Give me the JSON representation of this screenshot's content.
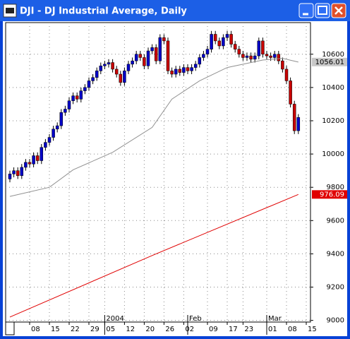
{
  "window": {
    "title": "DJI - DJ Industrial Average, Daily"
  },
  "chart_data": {
    "type": "candlestick",
    "open": [
      9850,
      9880,
      9900,
      9870,
      9920,
      9950,
      9940,
      9990,
      9960,
      10040,
      10070,
      10100,
      10150,
      10170,
      10250,
      10270,
      10320,
      10350,
      10330,
      10380,
      10400,
      10440,
      10460,
      10500,
      10530,
      10540,
      10550,
      10510,
      10480,
      10430,
      10500,
      10540,
      10560,
      10600,
      10580,
      10530,
      10620,
      10640,
      10560,
      10700,
      10680,
      10500,
      10480,
      10510,
      10490,
      10520,
      10500,
      10520,
      10540,
      10580,
      10600,
      10630,
      10720,
      10680,
      10650,
      10700,
      10720,
      10660,
      10630,
      10600,
      10580,
      10590,
      10570,
      10590,
      10680,
      10600,
      10590,
      10580,
      10600,
      10560,
      10510,
      10440,
      10300,
      10140
    ],
    "high": [
      9900,
      9920,
      9920,
      9940,
      9970,
      9970,
      10010,
      10010,
      10060,
      10090,
      10120,
      10170,
      10190,
      10270,
      10290,
      10340,
      10370,
      10370,
      10400,
      10420,
      10460,
      10480,
      10520,
      10550,
      10560,
      10570,
      10570,
      10530,
      10500,
      10520,
      10560,
      10580,
      10620,
      10620,
      10600,
      10640,
      10660,
      10660,
      10720,
      10720,
      10700,
      10520,
      10530,
      10530,
      10540,
      10540,
      10540,
      10560,
      10600,
      10620,
      10650,
      10740,
      10740,
      10700,
      10720,
      10740,
      10740,
      10680,
      10650,
      10620,
      10610,
      10610,
      10610,
      10700,
      10700,
      10620,
      10610,
      10620,
      10620,
      10580,
      10530,
      10460,
      10320,
      10240
    ],
    "low": [
      9830,
      9860,
      9850,
      9850,
      9900,
      9920,
      9920,
      9940,
      9940,
      10020,
      10050,
      10080,
      10130,
      10150,
      10230,
      10250,
      10300,
      10310,
      10310,
      10360,
      10380,
      10420,
      10440,
      10480,
      10510,
      10520,
      10490,
      10460,
      10410,
      10410,
      10480,
      10520,
      10540,
      10560,
      10510,
      10510,
      10600,
      10540,
      10540,
      10660,
      10480,
      10460,
      10460,
      10470,
      10470,
      10480,
      10480,
      10500,
      10520,
      10560,
      10580,
      10610,
      10660,
      10630,
      10630,
      10680,
      10640,
      10610,
      10580,
      10560,
      10560,
      10550,
      10550,
      10570,
      10580,
      10570,
      10560,
      10560,
      10540,
      10490,
      10420,
      10280,
      10120,
      10120
    ],
    "close": [
      9880,
      9900,
      9870,
      9920,
      9950,
      9940,
      9990,
      9960,
      10040,
      10070,
      10100,
      10150,
      10170,
      10250,
      10270,
      10320,
      10350,
      10330,
      10380,
      10400,
      10440,
      10460,
      10500,
      10530,
      10540,
      10550,
      10510,
      10480,
      10430,
      10500,
      10540,
      10560,
      10600,
      10580,
      10530,
      10620,
      10640,
      10560,
      10700,
      10680,
      10500,
      10480,
      10510,
      10490,
      10520,
      10500,
      10520,
      10540,
      10580,
      10600,
      10630,
      10720,
      10680,
      10650,
      10700,
      10720,
      10660,
      10630,
      10600,
      10580,
      10590,
      10570,
      10590,
      10680,
      10600,
      10590,
      10580,
      10600,
      10560,
      10510,
      10440,
      10300,
      10140,
      10220
    ],
    "up_color": "#0000c8",
    "down_color": "#c80000",
    "lines": [
      {
        "color": "#909090",
        "x": [
          0,
          10,
          16,
          26,
          36,
          41,
          48,
          55,
          64,
          69,
          73
        ],
        "values": [
          9745,
          9800,
          9905,
          10010,
          10160,
          10330,
          10440,
          10520,
          10565,
          10575,
          10553
        ],
        "last_label": "1056.01",
        "label_bg": "#c8c8c8",
        "label_fg": "#000000"
      },
      {
        "color": "#e00000",
        "x": [
          0,
          36,
          73
        ],
        "values": [
          9020,
          9390,
          9757
        ],
        "last_label": "976.09",
        "label_bg": "#e00000",
        "label_fg": "#ffffff"
      }
    ],
    "xlim": [
      -1.07,
      76.07
    ],
    "xticks": [
      {
        "value": 5,
        "label": "08"
      },
      {
        "value": 10,
        "label": "15"
      },
      {
        "value": 15,
        "label": "22"
      },
      {
        "value": 20,
        "label": "29"
      },
      {
        "value": 24,
        "label": "05"
      },
      {
        "value": 29,
        "label": "12"
      },
      {
        "value": 34,
        "label": "20"
      },
      {
        "value": 39,
        "label": "26"
      },
      {
        "value": 44,
        "label": "02"
      },
      {
        "value": 50,
        "label": "09"
      },
      {
        "value": 55,
        "label": "17"
      },
      {
        "value": 59,
        "label": "23"
      },
      {
        "value": 65,
        "label": "01"
      },
      {
        "value": 70,
        "label": "08"
      },
      {
        "value": 75,
        "label": "15"
      }
    ],
    "month_ticks": [
      {
        "value": 24,
        "label": "2004"
      },
      {
        "value": 45,
        "label": "Feb"
      },
      {
        "value": 65,
        "label": "Mar"
      }
    ],
    "ylim": [
      8990,
      10790
    ],
    "yticks": [
      9000,
      9200,
      9400,
      9600,
      9800,
      10000,
      10200,
      10400,
      10600
    ],
    "grid": true
  }
}
